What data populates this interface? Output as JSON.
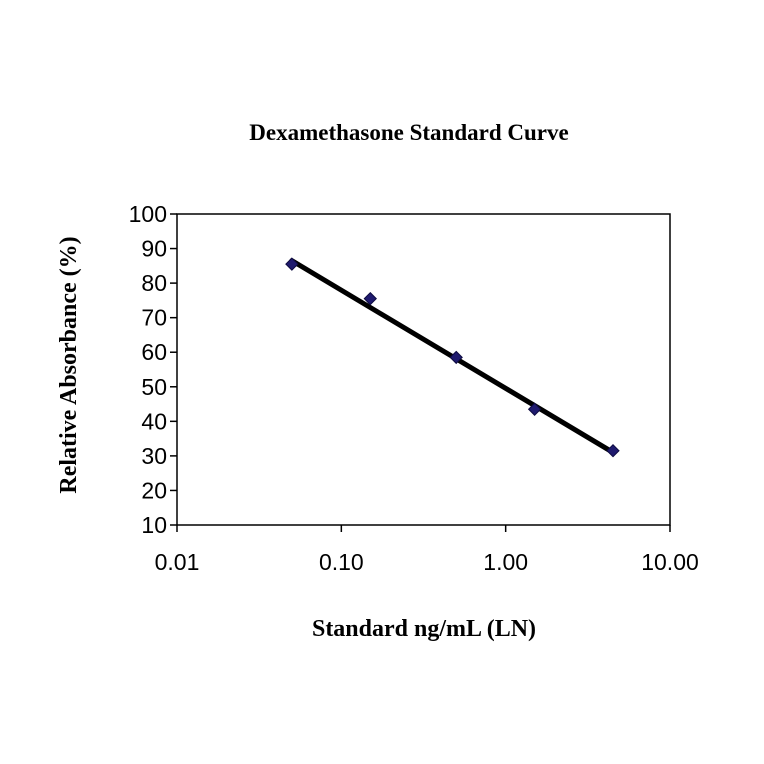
{
  "chart_data": {
    "type": "scatter",
    "title": "Dexamethasone Standard Curve",
    "xlabel": "Standard ng/mL (LN)",
    "ylabel": "Relative Absorbance  (%)",
    "xscale": "log",
    "xlim": [
      0.01,
      10
    ],
    "ylim": [
      10,
      100
    ],
    "xticks": [
      0.01,
      0.1,
      1,
      10
    ],
    "xtick_labels": [
      "0.01",
      "0.10",
      "1.00",
      "10.00"
    ],
    "yticks": [
      10,
      20,
      30,
      40,
      50,
      60,
      70,
      80,
      90,
      100
    ],
    "ytick_labels": [
      "10",
      "20",
      "30",
      "40",
      "50",
      "60",
      "70",
      "80",
      "90",
      "100"
    ],
    "grid": false,
    "legend": "none",
    "series": [
      {
        "x": [
          0.05,
          0.15,
          0.5,
          1.5,
          4.5
        ],
        "y": [
          85.5,
          75.5,
          58.5,
          43.5,
          31.5
        ],
        "marker": "diamond",
        "color": "#1f1a6e"
      }
    ],
    "trendline": {
      "x": [
        0.05,
        4.5
      ],
      "y": [
        86.5,
        31
      ],
      "color": "#000000"
    }
  }
}
